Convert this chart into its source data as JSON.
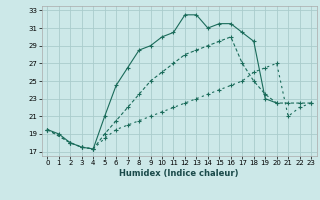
{
  "title": "",
  "xlabel": "Humidex (Indice chaleur)",
  "bg_color": "#cce8e8",
  "grid_color": "#aacccc",
  "line_color": "#1a6b5a",
  "xlim": [
    -0.5,
    23.5
  ],
  "ylim": [
    16.5,
    33.5
  ],
  "yticks": [
    17,
    19,
    21,
    23,
    25,
    27,
    29,
    31,
    33
  ],
  "xticks": [
    0,
    1,
    2,
    3,
    4,
    5,
    6,
    7,
    8,
    9,
    10,
    11,
    12,
    13,
    14,
    15,
    16,
    17,
    18,
    19,
    20,
    21,
    22,
    23
  ],
  "line1_x": [
    0,
    1,
    2,
    3,
    4,
    5,
    6,
    7,
    8,
    9,
    10,
    11,
    12,
    13,
    14,
    15,
    16,
    17,
    18,
    19,
    20
  ],
  "line1_y": [
    19.5,
    19.0,
    18.0,
    17.5,
    17.3,
    21.0,
    24.5,
    26.5,
    28.5,
    29.0,
    30.0,
    30.5,
    32.5,
    32.5,
    31.0,
    31.5,
    31.5,
    30.5,
    29.5,
    23.0,
    22.5
  ],
  "line2_x": [
    0,
    2,
    3,
    4,
    5,
    6,
    7,
    8,
    9,
    10,
    11,
    12,
    13,
    14,
    15,
    16,
    17,
    18,
    19,
    20,
    21,
    22,
    23
  ],
  "line2_y": [
    19.5,
    18.0,
    17.5,
    17.3,
    19.0,
    20.5,
    22.0,
    23.5,
    25.0,
    26.0,
    27.0,
    28.0,
    28.5,
    29.0,
    29.5,
    30.0,
    27.0,
    25.0,
    23.5,
    22.5,
    22.5,
    22.5,
    22.5
  ],
  "line3_x": [
    0,
    2,
    3,
    4,
    5,
    6,
    7,
    8,
    9,
    10,
    11,
    12,
    13,
    14,
    15,
    16,
    17,
    18,
    19,
    20,
    21,
    22,
    23
  ],
  "line3_y": [
    19.5,
    18.0,
    17.5,
    17.3,
    18.5,
    19.5,
    20.0,
    20.5,
    21.0,
    21.5,
    22.0,
    22.5,
    23.0,
    23.5,
    24.0,
    24.5,
    25.0,
    26.0,
    26.5,
    27.0,
    21.0,
    22.0,
    22.5
  ]
}
